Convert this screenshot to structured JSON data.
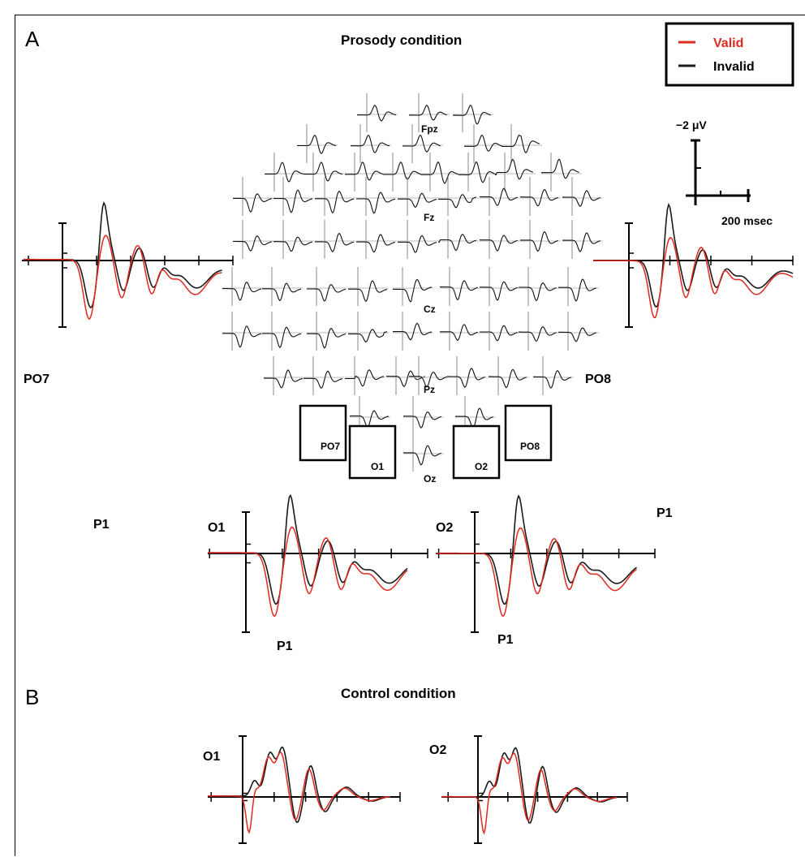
{
  "panels": {
    "a": {
      "letter": "A",
      "title": "Prosody condition"
    },
    "b": {
      "letter": "B",
      "title": "Control condition"
    }
  },
  "legend": {
    "valid": "Valid",
    "invalid": "Invalid",
    "valid_color": "#e0291f",
    "invalid_color": "#1a1a1a"
  },
  "scale_bar": {
    "amplitude": "−2 μV",
    "time": "200 msec"
  },
  "map_labels": {
    "fpz": "Fpz",
    "fz": "Fz",
    "cz": "Cz",
    "pz": "Pz",
    "oz": "Oz",
    "po7": "PO7",
    "po8": "PO8",
    "o1": "O1",
    "o2": "O2"
  },
  "enlarged": {
    "po7": {
      "title": "PO7",
      "peak": "P1"
    },
    "po8": {
      "title": "PO8",
      "peak": "P1"
    },
    "o1": {
      "title": "O1",
      "peak": "P1"
    },
    "o2": {
      "title": "O2",
      "peak": "P1"
    },
    "ctrl_o1": {
      "title": "O1"
    },
    "ctrl_o2": {
      "title": "O2"
    }
  },
  "chart_data": [
    {
      "type": "line",
      "panel": "A",
      "title": "Prosody condition",
      "channels": [
        "PO7",
        "PO8",
        "O1",
        "O2"
      ],
      "series": [
        {
          "name": "Valid"
        },
        {
          "name": "Invalid"
        }
      ],
      "yunit": "−2 μV",
      "xunit": "200 msec",
      "annotations": [
        "P1"
      ]
    },
    {
      "type": "line",
      "panel": "B",
      "title": "Control condition",
      "channels": [
        "O1",
        "O2"
      ],
      "series": [
        {
          "name": "Valid"
        },
        {
          "name": "Invalid"
        }
      ]
    }
  ]
}
